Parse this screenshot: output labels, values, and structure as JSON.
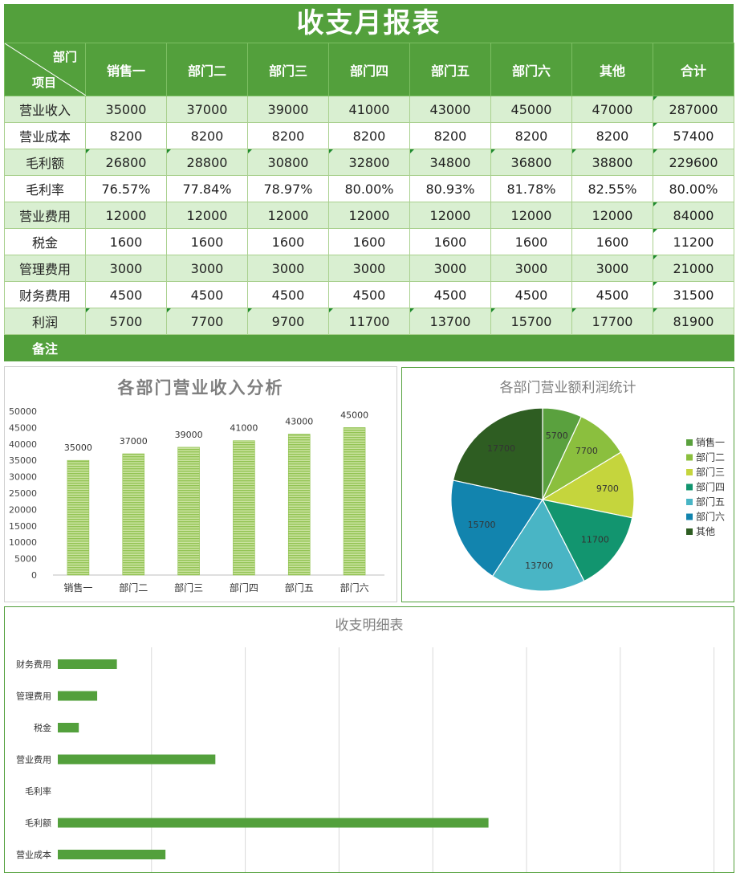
{
  "report": {
    "title": "收支月报表",
    "corner_top": "部门",
    "corner_bottom": "项目",
    "columns": [
      "销售一",
      "部门二",
      "部门三",
      "部门四",
      "部门五",
      "部门六",
      "其他",
      "合计"
    ],
    "rows": [
      {
        "label": "营业收入",
        "values": [
          "35000",
          "37000",
          "39000",
          "41000",
          "43000",
          "45000",
          "47000",
          "287000"
        ]
      },
      {
        "label": "营业成本",
        "values": [
          "8200",
          "8200",
          "8200",
          "8200",
          "8200",
          "8200",
          "8200",
          "57400"
        ]
      },
      {
        "label": "毛利额",
        "values": [
          "26800",
          "28800",
          "30800",
          "32800",
          "34800",
          "36800",
          "38800",
          "229600"
        ]
      },
      {
        "label": "毛利率",
        "values": [
          "76.57%",
          "77.84%",
          "78.97%",
          "80.00%",
          "80.93%",
          "81.78%",
          "82.55%",
          "80.00%"
        ]
      },
      {
        "label": "营业费用",
        "values": [
          "12000",
          "12000",
          "12000",
          "12000",
          "12000",
          "12000",
          "12000",
          "84000"
        ]
      },
      {
        "label": "税金",
        "values": [
          "1600",
          "1600",
          "1600",
          "1600",
          "1600",
          "1600",
          "1600",
          "11200"
        ]
      },
      {
        "label": "管理费用",
        "values": [
          "3000",
          "3000",
          "3000",
          "3000",
          "3000",
          "3000",
          "3000",
          "21000"
        ]
      },
      {
        "label": "财务费用",
        "values": [
          "4500",
          "4500",
          "4500",
          "4500",
          "4500",
          "4500",
          "4500",
          "31500"
        ]
      },
      {
        "label": "利润",
        "values": [
          "5700",
          "7700",
          "9700",
          "11700",
          "13700",
          "15700",
          "17700",
          "81900"
        ]
      }
    ],
    "note_label": "备注"
  },
  "colors": {
    "header_green": "#53a03c",
    "row_light_green": "#d9efd1",
    "bar_green": "#92c353",
    "hbar_green": "#53a03c"
  },
  "chart_data": [
    {
      "type": "bar",
      "title": "各部门营业收入分析",
      "categories": [
        "销售一",
        "部门二",
        "部门三",
        "部门四",
        "部门五",
        "部门六"
      ],
      "values": [
        35000,
        37000,
        39000,
        41000,
        43000,
        45000
      ],
      "ylim": [
        0,
        50000
      ],
      "yticks": [
        "0",
        "5000",
        "10000",
        "15000",
        "20000",
        "25000",
        "30000",
        "35000",
        "40000",
        "45000",
        "50000"
      ],
      "grid": false
    },
    {
      "type": "pie",
      "title": "各部门营业额利润统计",
      "labels": [
        "销售一",
        "部门二",
        "部门三",
        "部门四",
        "部门五",
        "部门六",
        "其他"
      ],
      "values": [
        5700,
        7700,
        9700,
        11700,
        13700,
        15700,
        17700
      ],
      "colors": [
        "#5aa13e",
        "#8bbf3e",
        "#c5d53d",
        "#12956f",
        "#49b5c5",
        "#1284ae",
        "#2e5d22"
      ],
      "legend": "right"
    },
    {
      "type": "bar",
      "orientation": "horizontal",
      "title": "收支明细表",
      "categories": [
        "财务费用",
        "管理费用",
        "税金",
        "营业费用",
        "毛利率",
        "毛利额",
        "营业成本"
      ],
      "values": [
        31500,
        21000,
        11200,
        84000,
        0.8,
        229600,
        57400
      ],
      "grid": true
    }
  ]
}
